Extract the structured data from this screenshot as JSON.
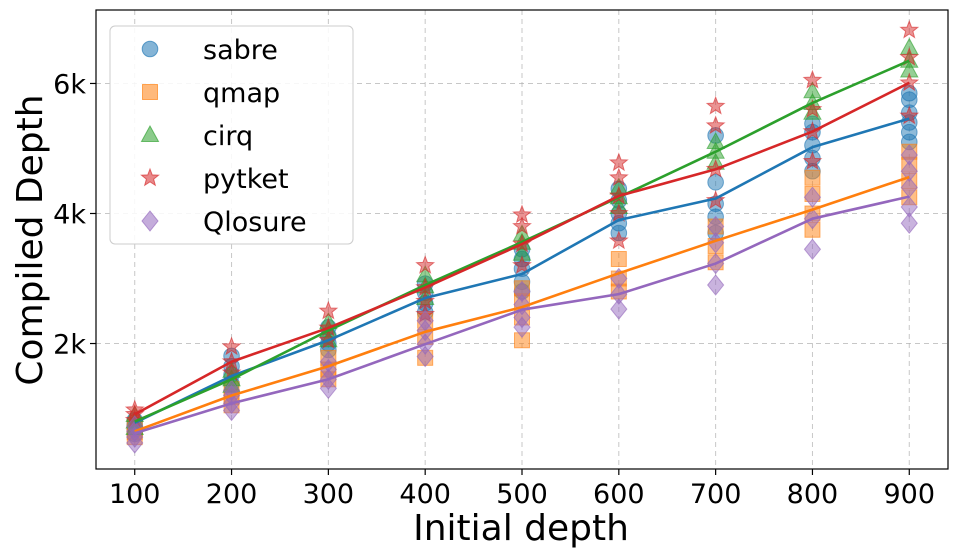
{
  "chart_data": {
    "type": "scatter",
    "title": "",
    "xlabel": "Initial depth",
    "ylabel": "Compiled Depth",
    "xlim": [
      60,
      940
    ],
    "ylim": [
      70,
      7130
    ],
    "x_ticks": [
      100,
      200,
      300,
      400,
      500,
      600,
      700,
      800,
      900
    ],
    "x_tick_labels": [
      "100",
      "200",
      "300",
      "400",
      "500",
      "600",
      "700",
      "800",
      "900"
    ],
    "y_ticks": [
      2000,
      4000,
      6000
    ],
    "y_tick_labels": [
      "2k",
      "4k",
      "6k"
    ],
    "grid": true,
    "legend_position": "top-left",
    "series": [
      {
        "name": "sabre",
        "color": "#1f77b4",
        "marker": "circle",
        "mean": [
          780,
          1500,
          2050,
          2700,
          3070,
          3900,
          4230,
          5020,
          5460
        ],
        "points": [
          [
            100,
            610
          ],
          [
            100,
            680
          ],
          [
            100,
            750
          ],
          [
            100,
            820
          ],
          [
            200,
            1380
          ],
          [
            200,
            1520
          ],
          [
            200,
            1650
          ],
          [
            200,
            1810
          ],
          [
            300,
            1900
          ],
          [
            300,
            2000
          ],
          [
            300,
            2120
          ],
          [
            300,
            2250
          ],
          [
            400,
            2480
          ],
          [
            400,
            2620
          ],
          [
            400,
            2780
          ],
          [
            400,
            2920
          ],
          [
            500,
            2800
          ],
          [
            500,
            2950
          ],
          [
            500,
            3150
          ],
          [
            500,
            3300
          ],
          [
            500,
            3450
          ],
          [
            600,
            3700
          ],
          [
            600,
            3850
          ],
          [
            600,
            4000
          ],
          [
            600,
            4200
          ],
          [
            600,
            4380
          ],
          [
            700,
            3700
          ],
          [
            700,
            3950
          ],
          [
            700,
            4150
          ],
          [
            700,
            4480
          ],
          [
            700,
            5200
          ],
          [
            800,
            4650
          ],
          [
            800,
            4850
          ],
          [
            800,
            5050
          ],
          [
            800,
            5250
          ],
          [
            800,
            5380
          ],
          [
            900,
            5100
          ],
          [
            900,
            5250
          ],
          [
            900,
            5400
          ],
          [
            900,
            5550
          ],
          [
            900,
            5750
          ],
          [
            900,
            5850
          ]
        ]
      },
      {
        "name": "qmap",
        "color": "#ff7f0e",
        "marker": "square",
        "mean": [
          650,
          1200,
          1650,
          2180,
          2560,
          3080,
          3580,
          4060,
          4560
        ],
        "points": [
          [
            100,
            560
          ],
          [
            100,
            640
          ],
          [
            100,
            720
          ],
          [
            200,
            1050
          ],
          [
            200,
            1180
          ],
          [
            200,
            1300
          ],
          [
            300,
            1450
          ],
          [
            300,
            1600
          ],
          [
            300,
            1780
          ],
          [
            400,
            1780
          ],
          [
            400,
            2100
          ],
          [
            400,
            2350
          ],
          [
            500,
            2050
          ],
          [
            500,
            2400
          ],
          [
            500,
            2650
          ],
          [
            500,
            2850
          ],
          [
            600,
            2800
          ],
          [
            600,
            3000
          ],
          [
            600,
            3300
          ],
          [
            700,
            3250
          ],
          [
            700,
            3500
          ],
          [
            700,
            3800
          ],
          [
            800,
            3750
          ],
          [
            800,
            4000
          ],
          [
            800,
            4300
          ],
          [
            800,
            4550
          ],
          [
            900,
            4250
          ],
          [
            900,
            4500
          ],
          [
            900,
            4750
          ],
          [
            900,
            4950
          ]
        ]
      },
      {
        "name": "cirq",
        "color": "#2ca02c",
        "marker": "triangle",
        "mean": [
          800,
          1450,
          2200,
          2900,
          3560,
          4250,
          4950,
          5700,
          6350
        ],
        "points": [
          [
            100,
            700
          ],
          [
            100,
            800
          ],
          [
            100,
            900
          ],
          [
            200,
            1350
          ],
          [
            200,
            1450
          ],
          [
            200,
            1580
          ],
          [
            300,
            2050
          ],
          [
            300,
            2200
          ],
          [
            300,
            2330
          ],
          [
            400,
            2700
          ],
          [
            400,
            2880
          ],
          [
            400,
            3050
          ],
          [
            500,
            3380
          ],
          [
            500,
            3550
          ],
          [
            500,
            3680
          ],
          [
            600,
            4100
          ],
          [
            600,
            4250
          ],
          [
            600,
            4400
          ],
          [
            700,
            4780
          ],
          [
            700,
            4950
          ],
          [
            700,
            5100
          ],
          [
            800,
            5550
          ],
          [
            800,
            5700
          ],
          [
            800,
            5880
          ],
          [
            900,
            6200
          ],
          [
            900,
            6350
          ],
          [
            900,
            6550
          ]
        ]
      },
      {
        "name": "pytket",
        "color": "#d62728",
        "marker": "star",
        "mean": [
          910,
          1720,
          2240,
          2860,
          3530,
          4270,
          4680,
          5260,
          6010
        ],
        "points": [
          [
            100,
            820
          ],
          [
            100,
            910
          ],
          [
            100,
            980
          ],
          [
            200,
            1550
          ],
          [
            200,
            1720
          ],
          [
            200,
            1950
          ],
          [
            300,
            2050
          ],
          [
            300,
            2240
          ],
          [
            300,
            2500
          ],
          [
            400,
            2450
          ],
          [
            400,
            2650
          ],
          [
            400,
            2860
          ],
          [
            400,
            3200
          ],
          [
            500,
            3200
          ],
          [
            500,
            3530
          ],
          [
            500,
            3800
          ],
          [
            500,
            3980
          ],
          [
            600,
            3580
          ],
          [
            600,
            4000
          ],
          [
            600,
            4270
          ],
          [
            600,
            4550
          ],
          [
            600,
            4780
          ],
          [
            700,
            4200
          ],
          [
            700,
            4680
          ],
          [
            700,
            5350
          ],
          [
            700,
            5650
          ],
          [
            800,
            4800
          ],
          [
            800,
            5260
          ],
          [
            800,
            5600
          ],
          [
            800,
            6050
          ],
          [
            900,
            5500
          ],
          [
            900,
            6010
          ],
          [
            900,
            6400
          ],
          [
            900,
            6820
          ]
        ]
      },
      {
        "name": "Qlosure",
        "color": "#9467bd",
        "marker": "diamond",
        "mean": [
          620,
          1080,
          1450,
          1990,
          2520,
          2760,
          3230,
          3920,
          4260
        ],
        "points": [
          [
            100,
            470
          ],
          [
            100,
            560
          ],
          [
            100,
            650
          ],
          [
            100,
            730
          ],
          [
            200,
            970
          ],
          [
            200,
            1080
          ],
          [
            200,
            1200
          ],
          [
            200,
            1280
          ],
          [
            300,
            1310
          ],
          [
            300,
            1450
          ],
          [
            300,
            1600
          ],
          [
            300,
            1720
          ],
          [
            400,
            1800
          ],
          [
            400,
            1990
          ],
          [
            400,
            2200
          ],
          [
            400,
            2350
          ],
          [
            500,
            2250
          ],
          [
            500,
            2400
          ],
          [
            500,
            2600
          ],
          [
            500,
            2800
          ],
          [
            600,
            2530
          ],
          [
            600,
            2760
          ],
          [
            600,
            3000
          ],
          [
            700,
            2900
          ],
          [
            700,
            3230
          ],
          [
            700,
            3550
          ],
          [
            700,
            3800
          ],
          [
            800,
            3450
          ],
          [
            800,
            3920
          ],
          [
            800,
            4250
          ],
          [
            900,
            3850
          ],
          [
            900,
            4100
          ],
          [
            900,
            4400
          ],
          [
            900,
            4650
          ],
          [
            900,
            4900
          ]
        ]
      }
    ]
  }
}
